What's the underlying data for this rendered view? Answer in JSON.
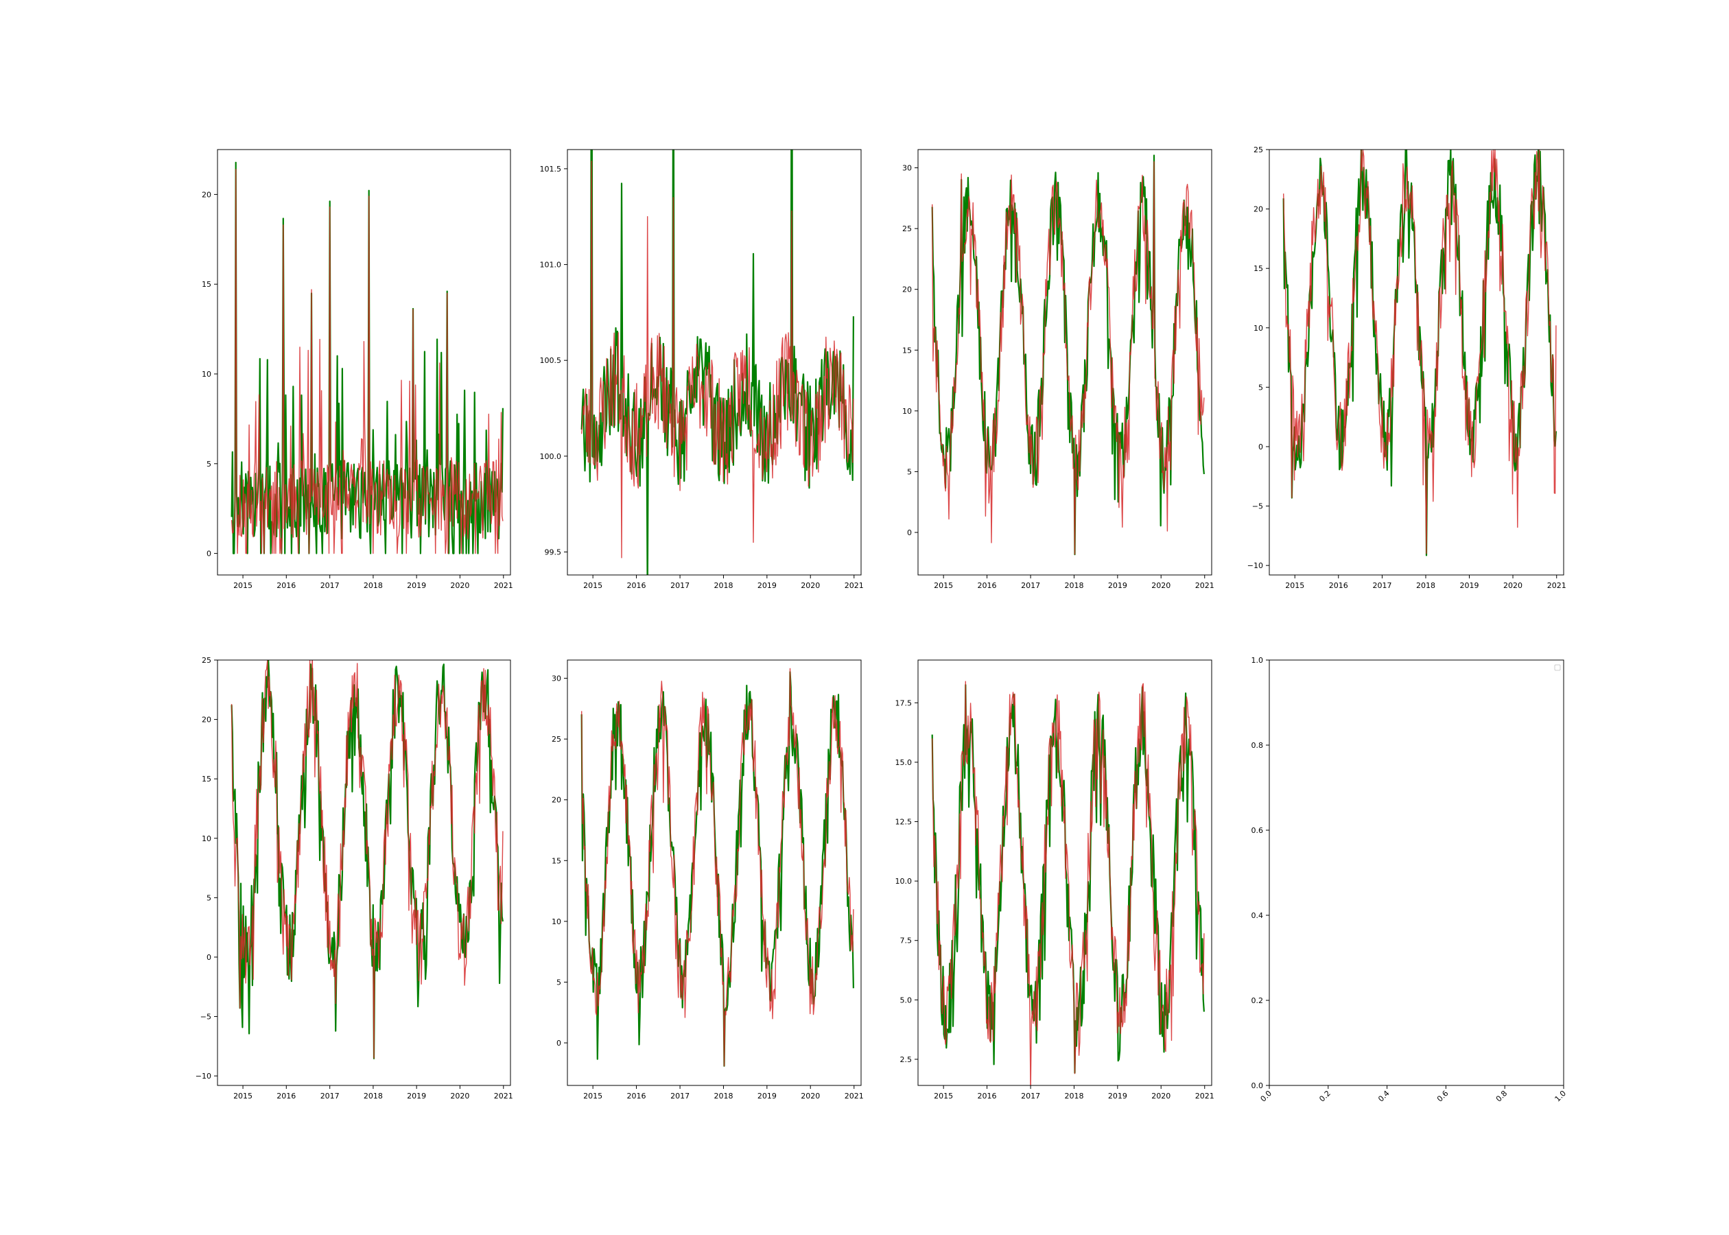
{
  "figure": {
    "colors": {
      "series_a": "#d62728",
      "series_b": "#008000",
      "axes": "#000000",
      "legend_border": "#cccccc"
    }
  },
  "chart_data": [
    {
      "type": "line",
      "xlim": [
        "2014-06-01",
        "2021-03-01"
      ],
      "ylim": [
        -1.2,
        22.5
      ],
      "xticks": [
        "2015",
        "2016",
        "2017",
        "2018",
        "2019",
        "2020",
        "2021"
      ],
      "yticks": [
        "0",
        "5",
        "10",
        "15",
        "20"
      ],
      "gen": {
        "kind": "spiky",
        "base": 3.0,
        "amp": 0,
        "noise": 2.2,
        "spike_p": 0.12,
        "spike_max": 10,
        "spikes": [
          [
            5,
            21.4
          ],
          [
            62,
            18.3
          ],
          [
            96,
            14.7
          ],
          [
            118,
            19.3
          ],
          [
            165,
            19.9
          ],
          [
            259,
            14.5
          ],
          [
            218,
            13.6
          ]
        ],
        "min": 0,
        "seed": 11
      },
      "x_range": [
        "2014-09-28",
        "2020-12-27"
      ],
      "end": [
        1.8,
        8.1
      ]
    },
    {
      "type": "line",
      "xlim": [
        "2014-06-01",
        "2021-03-01"
      ],
      "ylim": [
        99.38,
        101.6
      ],
      "xticks": [
        "2015",
        "2016",
        "2017",
        "2018",
        "2019",
        "2020",
        "2021"
      ],
      "yticks": [
        "99.5",
        "100.0",
        "100.5",
        "101.0",
        "101.5"
      ],
      "gen": {
        "kind": "noisy",
        "base": 100.25,
        "amp": -0.15,
        "noise": 0.28,
        "spikes": [
          [
            12,
            101.54
          ],
          [
            48,
            99.47
          ],
          [
            79,
            101.25
          ],
          [
            110,
            101.35
          ],
          [
            206,
            99.55
          ],
          [
            252,
            101.28
          ]
        ],
        "seed": 23
      },
      "x_range": [
        "2014-09-28",
        "2020-12-27"
      ],
      "end": [
        100.3,
        100.73
      ]
    },
    {
      "type": "line",
      "xlim": [
        "2014-06-01",
        "2021-03-01"
      ],
      "ylim": [
        -3.5,
        31.5
      ],
      "xticks": [
        "2015",
        "2016",
        "2017",
        "2018",
        "2019",
        "2020",
        "2021"
      ],
      "yticks": [
        "0",
        "5",
        "10",
        "15",
        "20",
        "25",
        "30"
      ],
      "gen": {
        "kind": "seasonal",
        "base": 16.5,
        "amp": 10.5,
        "noise": 2.8,
        "spikes": [
          [
            0,
            27.0
          ],
          [
            171,
            -1.8
          ],
          [
            266,
            30.5
          ],
          [
            35,
            29.5
          ]
        ],
        "seed": 37
      },
      "x_range": [
        "2014-09-28",
        "2020-12-27"
      ],
      "end": [
        11.1,
        4.8
      ]
    },
    {
      "type": "line",
      "xlim": [
        "2014-06-01",
        "2021-03-01"
      ],
      "ylim": [
        -10.8,
        25.0
      ],
      "xticks": [
        "2015",
        "2016",
        "2017",
        "2018",
        "2019",
        "2020",
        "2021"
      ],
      "yticks": [
        "−10",
        "−5",
        "0",
        "5",
        "10",
        "15",
        "20",
        "25"
      ],
      "gen": {
        "kind": "seasonal",
        "base": 11.5,
        "amp": 11.0,
        "noise": 3.2,
        "spikes": [
          [
            0,
            21.3
          ],
          [
            10,
            -4.3
          ],
          [
            171,
            -9.0
          ],
          [
            45,
            23.6
          ]
        ],
        "seed": 41
      },
      "x_range": [
        "2014-09-28",
        "2020-12-27"
      ],
      "end": [
        10.2,
        1.3
      ]
    },
    {
      "type": "line",
      "xlim": [
        "2014-06-01",
        "2021-03-01"
      ],
      "ylim": [
        -10.8,
        25.0
      ],
      "xticks": [
        "2015",
        "2016",
        "2017",
        "2018",
        "2019",
        "2020",
        "2021"
      ],
      "yticks": [
        "−10",
        "−5",
        "0",
        "5",
        "10",
        "15",
        "20",
        "25"
      ],
      "gen": {
        "kind": "seasonal",
        "base": 11.5,
        "amp": 11.0,
        "noise": 3.2,
        "spikes": [
          [
            0,
            21.3
          ],
          [
            10,
            -4.3
          ],
          [
            171,
            -8.5
          ],
          [
            45,
            23.6
          ]
        ],
        "seed": 43
      },
      "x_range": [
        "2014-09-28",
        "2020-12-27"
      ],
      "end": [
        10.6,
        3.0
      ]
    },
    {
      "type": "line",
      "xlim": [
        "2014-06-01",
        "2021-03-01"
      ],
      "ylim": [
        -3.5,
        31.5
      ],
      "xticks": [
        "2015",
        "2016",
        "2017",
        "2018",
        "2019",
        "2020",
        "2021"
      ],
      "yticks": [
        "0",
        "5",
        "10",
        "15",
        "20",
        "25",
        "30"
      ],
      "gen": {
        "kind": "seasonal",
        "base": 16.0,
        "amp": 11.0,
        "noise": 2.8,
        "spikes": [
          [
            0,
            27.3
          ],
          [
            171,
            -1.9
          ],
          [
            250,
            30.8
          ]
        ],
        "seed": 53
      },
      "x_range": [
        "2014-09-28",
        "2020-12-27"
      ],
      "end": [
        11.0,
        4.5
      ]
    },
    {
      "type": "line",
      "xlim": [
        "2014-06-01",
        "2021-03-01"
      ],
      "ylim": [
        1.4,
        19.3
      ],
      "xticks": [
        "2015",
        "2016",
        "2017",
        "2018",
        "2019",
        "2020",
        "2021"
      ],
      "yticks": [
        "2.5",
        "5.0",
        "7.5",
        "10.0",
        "12.5",
        "15.0",
        "17.5"
      ],
      "gen": {
        "kind": "seasonal",
        "base": 10.5,
        "amp": 6.2,
        "noise": 1.7,
        "spikes": [
          [
            0,
            16.0
          ],
          [
            171,
            1.9
          ],
          [
            40,
            18.4
          ]
        ],
        "seed": 61
      },
      "x_range": [
        "2014-09-28",
        "2020-12-27"
      ],
      "end": [
        7.8,
        4.5
      ]
    },
    {
      "type": "line",
      "xlim": [
        0.0,
        1.0
      ],
      "ylim": [
        0.0,
        1.0
      ],
      "xticks": [
        "0.0",
        "0.2",
        "0.4",
        "0.6",
        "0.8",
        "1.0"
      ],
      "yticks": [
        "0.0",
        "0.2",
        "0.4",
        "0.6",
        "0.8",
        "1.0"
      ],
      "rotated_xticks": true,
      "empty": true,
      "legend": "top-right (empty)"
    }
  ]
}
